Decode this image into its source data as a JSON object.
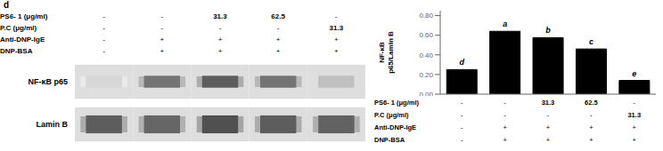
{
  "chart_data": [
    {
      "type": "heatmap",
      "title": "d",
      "rows": [
        "NF-κB p65",
        "Lamin B"
      ],
      "cells": [
        [
          0.18,
          0.62,
          0.72,
          0.62,
          0.28
        ],
        [
          0.72,
          0.68,
          0.78,
          0.72,
          0.7
        ]
      ],
      "table": {
        "rows": [
          "PS6- 1 (μg/ml)",
          "P.C (μg/ml)",
          "Anti-DNP-IgE",
          "DNP-BSA"
        ],
        "cells": [
          [
            "-",
            "-",
            "31.3",
            "62.5",
            "-"
          ],
          [
            "-",
            "-",
            "-",
            "-",
            "31.3"
          ],
          [
            "-",
            "+",
            "+",
            "+",
            "+"
          ],
          [
            "-",
            "+",
            "+",
            "+",
            "+"
          ]
        ]
      }
    },
    {
      "type": "bar",
      "ylabel": "NF-κB\np65/Lamin B",
      "values": [
        0.25,
        0.64,
        0.575,
        0.46,
        0.14
      ],
      "annotations": [
        "d",
        "a",
        "b",
        "c",
        "e"
      ],
      "color": "#000000",
      "ylim": [
        0.0,
        0.85
      ],
      "yticks": [
        {
          "value": 0.0,
          "label": "0.00"
        },
        {
          "value": 0.2,
          "label": "0.20"
        },
        {
          "value": 0.4,
          "label": "0.40"
        },
        {
          "value": 0.6,
          "label": "0.60"
        },
        {
          "value": 0.8,
          "label": "0.80"
        }
      ],
      "table": {
        "rows": [
          "PS6- 1 (μg/ml)",
          "P.C (μg/ml)",
          "Anti-DNP-IgE",
          "DNP-BSA"
        ],
        "cells": [
          [
            "-",
            "-",
            "31.3",
            "62.5",
            "-"
          ],
          [
            "-",
            "-",
            "-",
            "-",
            "31.3"
          ],
          [
            "-",
            "+",
            "+",
            "+",
            "+"
          ],
          [
            "-",
            "+",
            "+",
            "+",
            "+"
          ]
        ]
      }
    }
  ]
}
